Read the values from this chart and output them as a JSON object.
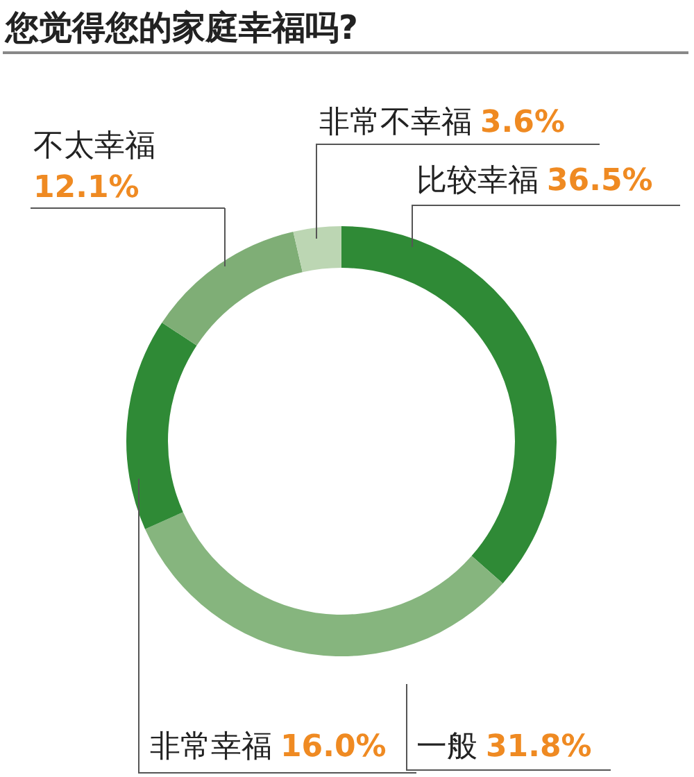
{
  "chart_data": {
    "type": "donut",
    "title": "您觉得您的家庭幸福吗?",
    "categories": [
      "比较幸福",
      "一般",
      "非常幸福",
      "不太幸福",
      "非常不幸福"
    ],
    "values": [
      36.5,
      31.8,
      16.0,
      12.1,
      3.6
    ],
    "value_labels": [
      "36.5%",
      "31.8%",
      "16.0%",
      "12.1%",
      "3.6%"
    ],
    "colors": [
      "#2f8a36",
      "#86b57e",
      "#2f8a36",
      "#7fae76",
      "#bcd6b3"
    ]
  }
}
